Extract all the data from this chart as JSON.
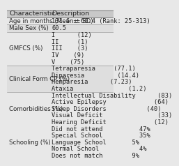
{
  "title_col1": "Characteristic",
  "title_col2": "Description",
  "rows": [
    {
      "char": "Age in months (Mean ± SD)",
      "desc": [
        "131.6 ± 60.4 (Rank: 25-313)"
      ]
    },
    {
      "char": "Male Sex (%)",
      "desc": [
        "60.5"
      ]
    },
    {
      "char": "GMFCS (%)",
      "desc": [
        "I      (12)",
        "II     (1)",
        "III    (3)",
        "IV    (9)",
        "V    (75)"
      ]
    },
    {
      "char": "Clinical Form CP (%)",
      "desc": [
        "Tetraparesia     (77.1)",
        "Diparesia         (14.4)",
        "Hemparesia      (7.23)",
        "Ataxia               (1.2)"
      ]
    },
    {
      "char": "Comorbidities (%)",
      "desc": [
        "Intellectual Disability      (83)",
        "Active Epilepsy             (64)",
        "Sleep Disorders           (40)",
        "Visual Deficit               (33)",
        "Hearing Deficit             (12)"
      ]
    },
    {
      "char": "Schooling (%)",
      "desc": [
        "Did not attend          47%",
        "Special School          35%",
        "Language School       5%",
        "Normal School           4%",
        "Does not match        9%"
      ]
    }
  ],
  "bg_color": "#e8e8e8",
  "header_bg": "#c8c8c8",
  "line_color": "#888888",
  "text_color": "#222222",
  "font_size": 6.2,
  "header_font_size": 6.8
}
